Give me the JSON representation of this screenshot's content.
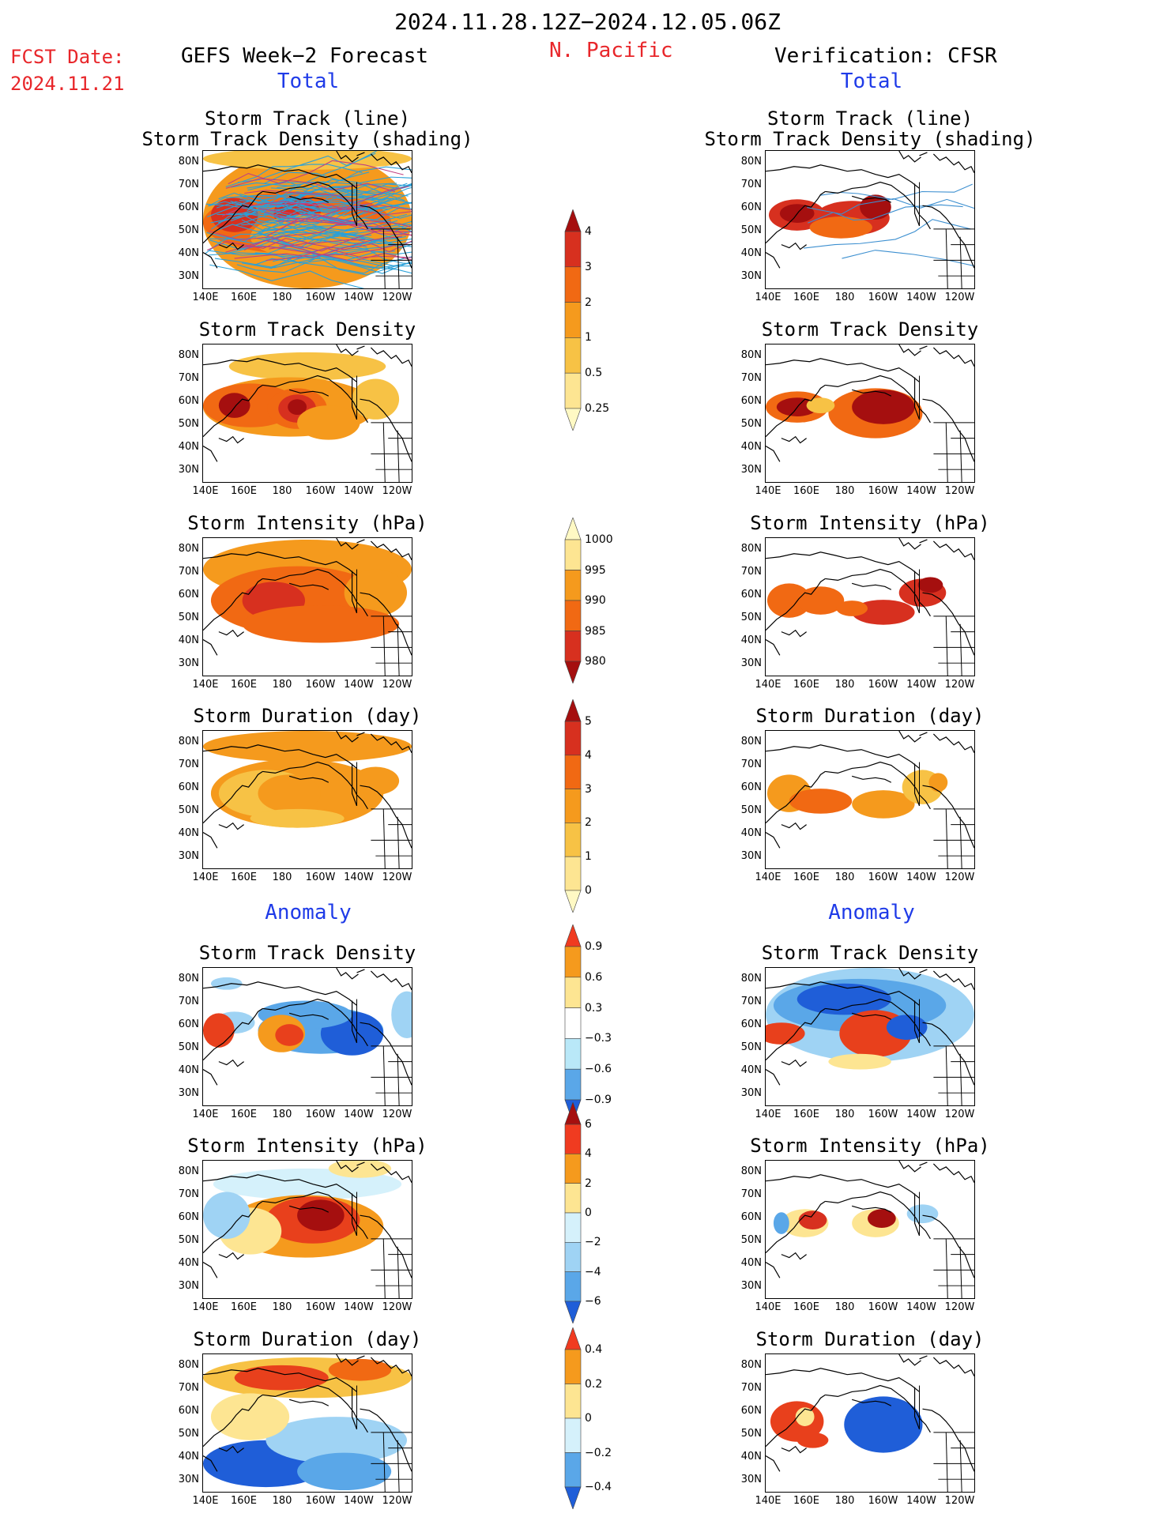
{
  "header": {
    "date_range": "2024.11.28.12Z−2024.12.05.06Z",
    "fcst_label": "FCST Date:",
    "fcst_date": "2024.11.21",
    "left_title": "GEFS Week−2 Forecast",
    "region": "N. Pacific",
    "right_title": "Verification: CFSR"
  },
  "sections": {
    "total": "Total",
    "anomaly": "Anomaly"
  },
  "panel_titles": {
    "track_line": "Storm Track (line)",
    "track_shading": "Storm Track Density (shading)",
    "density": "Storm Track Density",
    "intensity": "Storm Intensity (hPa)",
    "duration": "Storm Duration (day)"
  },
  "axes": {
    "lat_ticks": [
      "80N",
      "70N",
      "60N",
      "50N",
      "40N",
      "30N"
    ],
    "lon_ticks": [
      "140E",
      "160E",
      "180",
      "160W",
      "140W",
      "120W"
    ]
  },
  "colorbars": [
    {
      "name": "density",
      "labels": [
        "4",
        "3",
        "2",
        "1",
        "0.5",
        "0.25"
      ],
      "colors": [
        "#a50f0f",
        "#d7301f",
        "#f16913",
        "#f59a1d",
        "#f7c245",
        "#fde592",
        "#fff9c4"
      ]
    },
    {
      "name": "intensity",
      "labels": [
        "1000",
        "995",
        "990",
        "985",
        "980"
      ],
      "colors": [
        "#fff9c4",
        "#fde592",
        "#f59a1d",
        "#f16913",
        "#d7301f",
        "#a50f0f"
      ]
    },
    {
      "name": "duration",
      "labels": [
        "5",
        "4",
        "3",
        "2",
        "1",
        "0"
      ],
      "colors": [
        "#a50f0f",
        "#d7301f",
        "#f16913",
        "#f59a1d",
        "#f7c245",
        "#fde592",
        "#fff9c4"
      ]
    },
    {
      "name": "density-anom",
      "labels": [
        "0.9",
        "0.6",
        "0.3",
        "−0.3",
        "−0.6",
        "−0.9"
      ],
      "colors": [
        "#f03b20",
        "#f59a1d",
        "#fde592",
        "#ffffff",
        "#b9e8f8",
        "#5aa7e8",
        "#1f5ed8"
      ]
    },
    {
      "name": "intensity-anom",
      "labels": [
        "6",
        "4",
        "2",
        "0",
        "−2",
        "−4",
        "−6"
      ],
      "colors": [
        "#a50f0f",
        "#f03b20",
        "#f59a1d",
        "#fde592",
        "#d5f1fb",
        "#9fd3f4",
        "#5aa7e8",
        "#1f5ed8"
      ]
    },
    {
      "name": "duration-anom",
      "labels": [
        "0.4",
        "0.2",
        "0",
        "−0.2",
        "−0.4"
      ],
      "colors": [
        "#f03b20",
        "#f59a1d",
        "#fde592",
        "#d5f1fb",
        "#5aa7e8",
        "#1f5ed8"
      ]
    }
  ]
}
